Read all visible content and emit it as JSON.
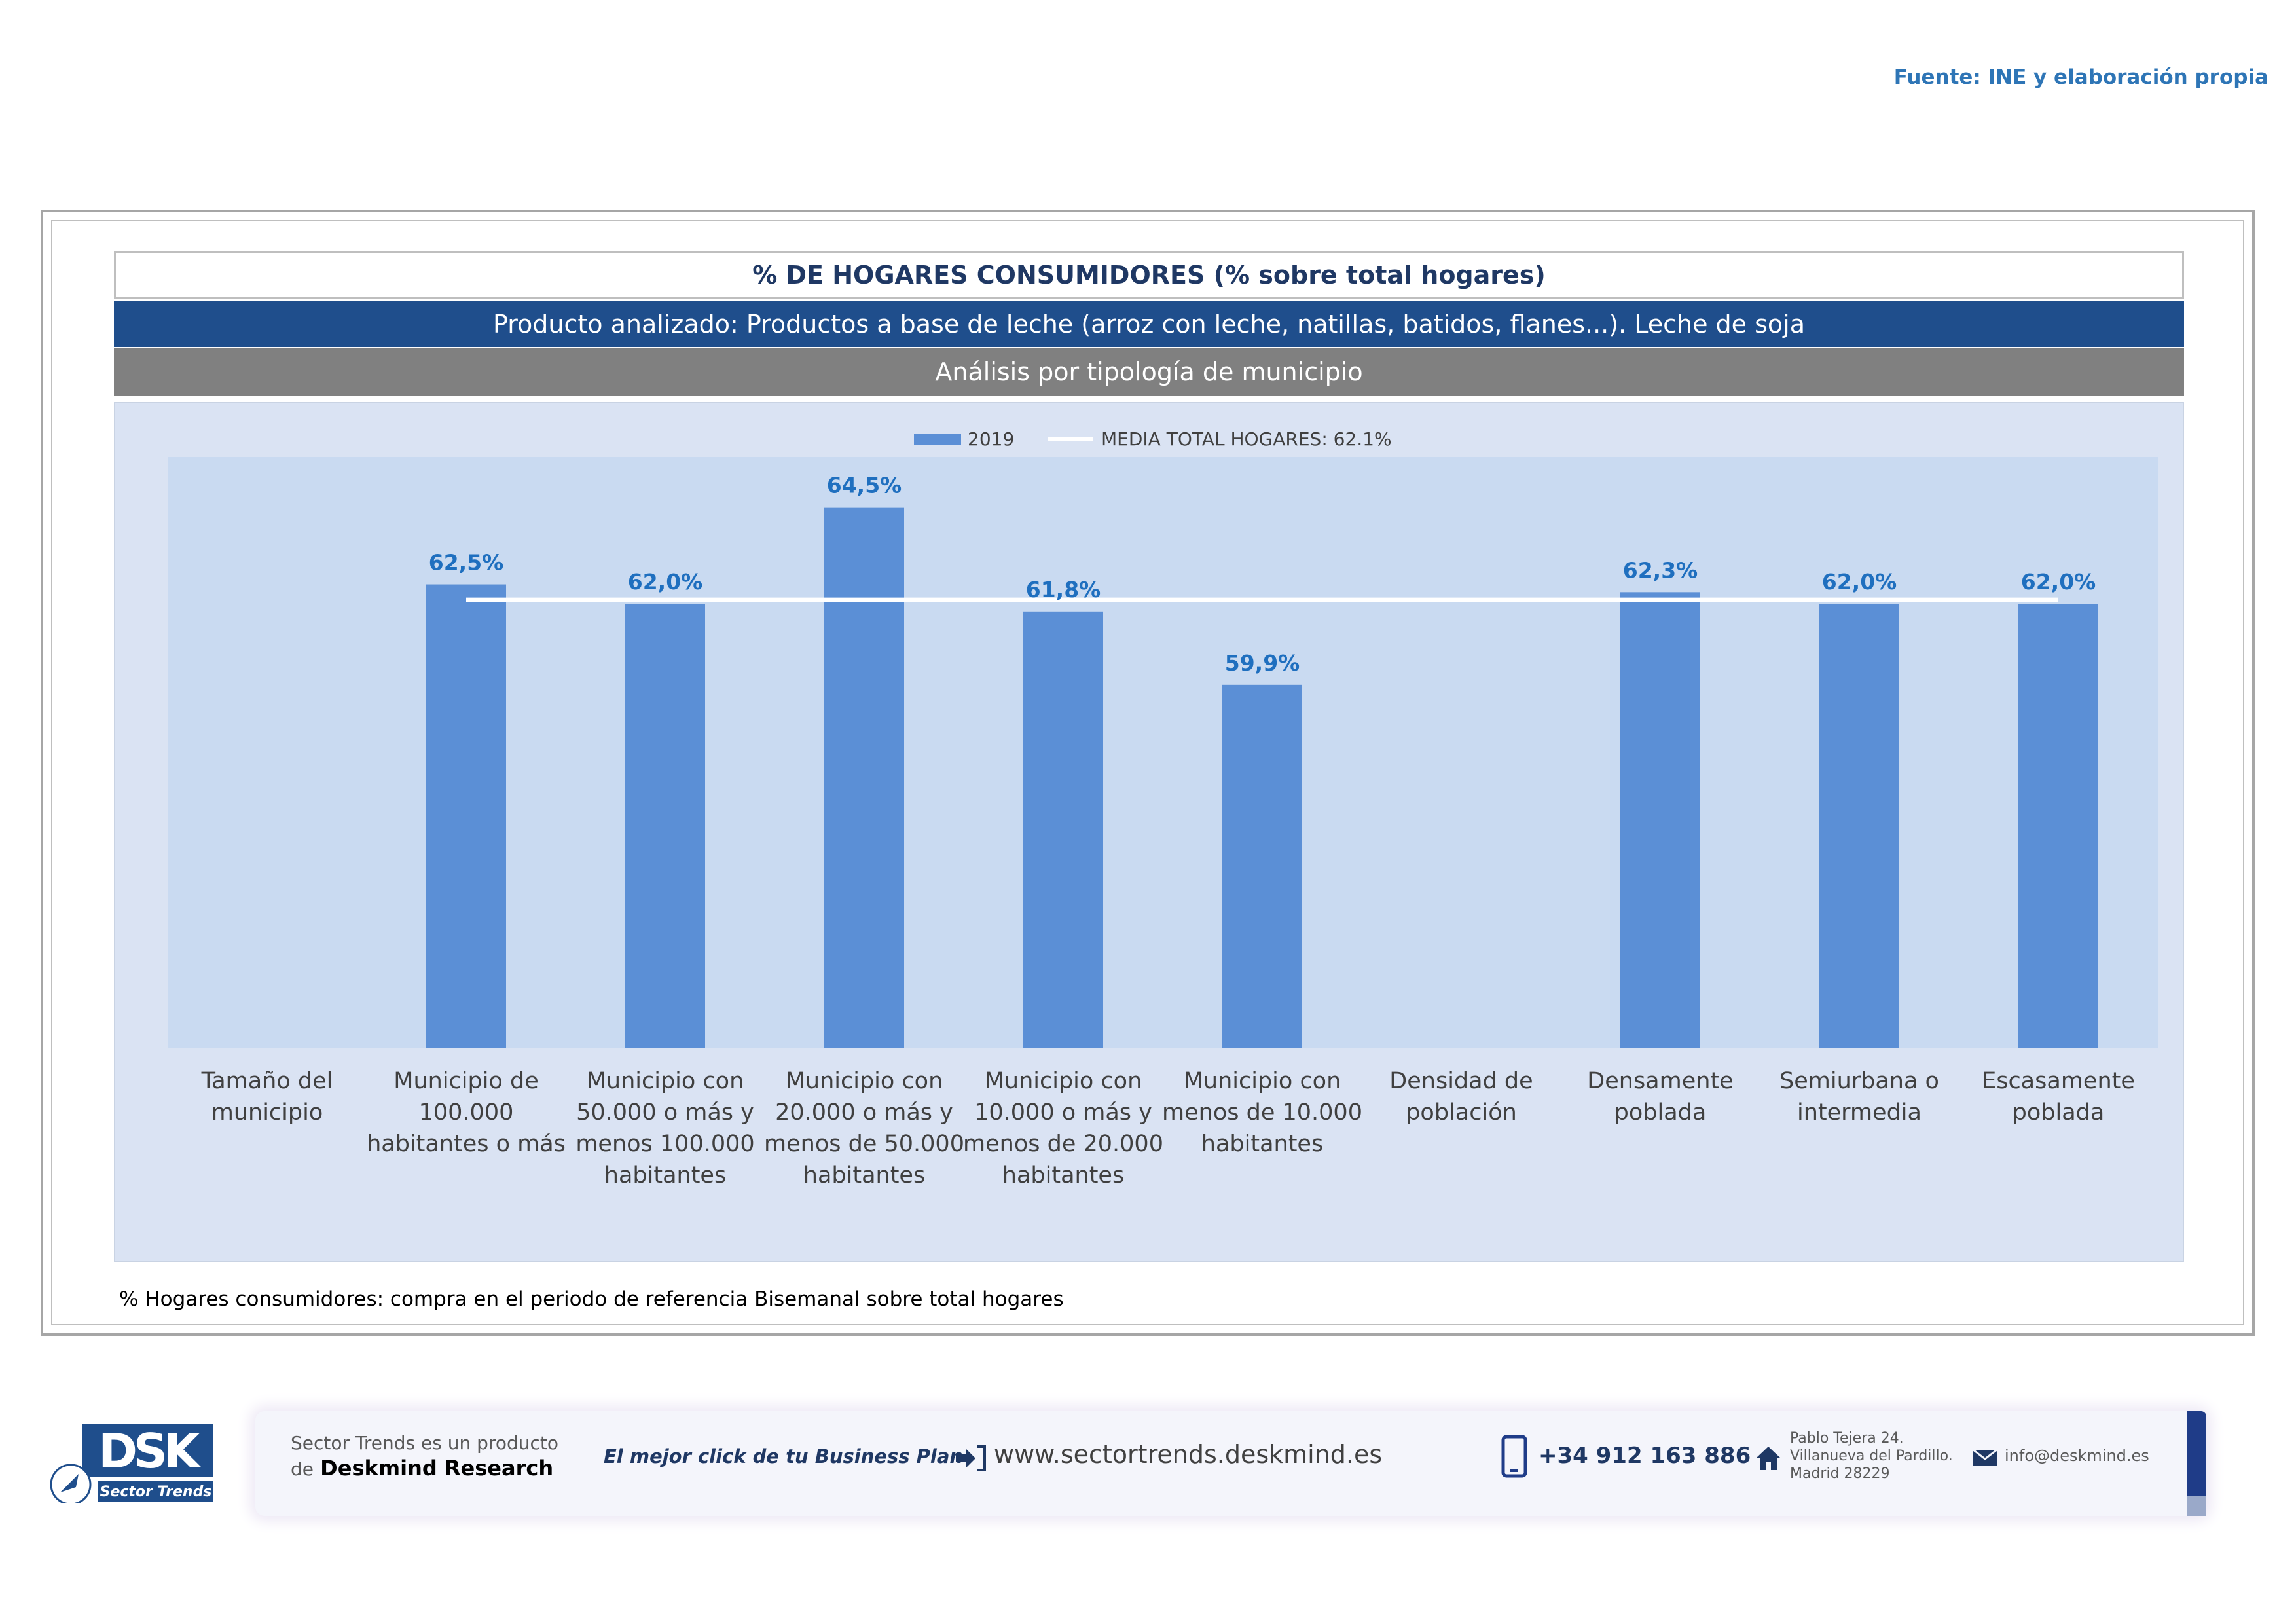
{
  "source": "Fuente: INE y elaboración propia",
  "header": {
    "title": "% DE HOGARES CONSUMIDORES (% sobre total hogares)",
    "product": "Producto analizado: Productos a base de leche (arroz con leche, natillas, batidos, flanes...). Leche de soja",
    "analysis": "Análisis por tipología de municipio"
  },
  "chart_data": {
    "type": "bar",
    "legend": {
      "bar_label": "2019",
      "line_label": "MEDIA TOTAL  HOGARES:  62.1%",
      "position": "top-center"
    },
    "categories": [
      [
        "Tamaño del",
        "municipio"
      ],
      [
        "Municipio de",
        "100.000",
        "habitantes o más"
      ],
      [
        "Municipio con",
        "50.000 o más y",
        "menos 100.000",
        "habitantes"
      ],
      [
        "Municipio con",
        "20.000 o más y",
        "menos de 50.000",
        "habitantes"
      ],
      [
        "Municipio con",
        "10.000 o más y",
        "menos de 20.000",
        "habitantes"
      ],
      [
        "Municipio con",
        "menos de 10.000",
        "habitantes"
      ],
      [
        "Densidad de",
        "población"
      ],
      [
        "Densamente",
        "poblada"
      ],
      [
        "Semiurbana o",
        "intermedia"
      ],
      [
        "Escasamente",
        "poblada"
      ]
    ],
    "values": [
      null,
      62.5,
      62.0,
      64.5,
      61.8,
      59.9,
      null,
      62.3,
      62.0,
      62.0
    ],
    "value_labels": [
      "",
      "62,5%",
      "62,0%",
      "64,5%",
      "61,8%",
      "59,9%",
      "",
      "62,3%",
      "62,0%",
      "62,0%"
    ],
    "reference_line": {
      "value": 62.1,
      "from_category": 1,
      "to_category": 9
    },
    "ylim": [
      50.5,
      65.8
    ],
    "colors": {
      "bar": "#5b8fd6",
      "plot_bg": "#c9daf1",
      "label": "#1f6fbf",
      "line": "#ffffff"
    }
  },
  "footnote": "% Hogares consumidores: compra en el periodo de referencia Bisemanal sobre total hogares",
  "footer": {
    "logo_text": "DSK",
    "logo_sub": "Sector Trends",
    "product_line1": "Sector Trends es un producto",
    "product_line2_prefix": "de",
    "product_line2_brand": "Deskmind Research",
    "slogan": "El mejor click de tu Business Plan",
    "website": "www.sectortrends.deskmind.es",
    "phone": "+34 912 163 886",
    "address_line1": "Pablo Tejera 24.",
    "address_line2": "Villanueva del Pardillo.",
    "address_line3": "Madrid 28229",
    "email": "info@deskmind.es"
  }
}
